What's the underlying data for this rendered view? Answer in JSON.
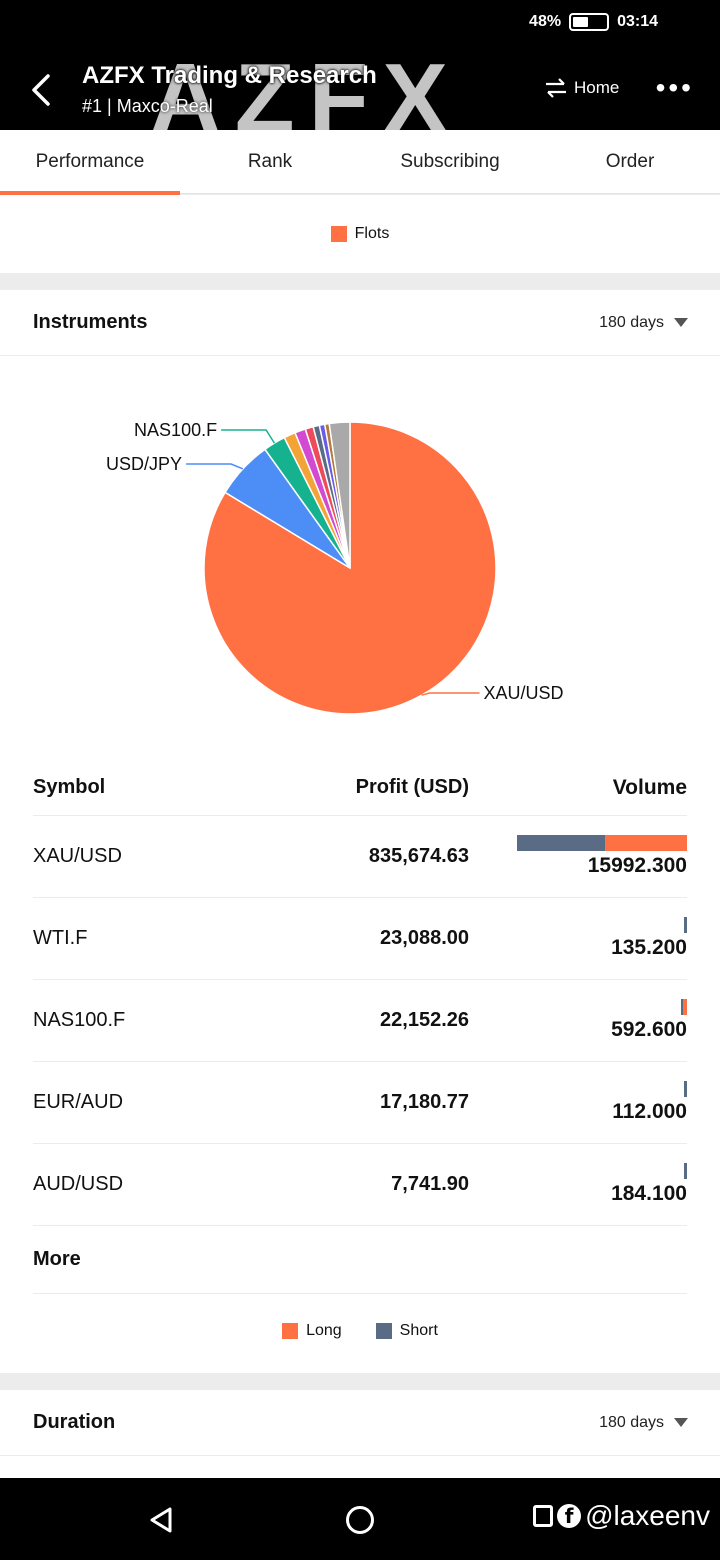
{
  "status_bar": {
    "battery_percent_label": "48%",
    "battery_level": 0.48,
    "time": "03:14"
  },
  "header": {
    "watermark": "AZFX",
    "title": "AZFX Trading & Research",
    "subtitle": "#1 | Maxco-Real",
    "home_label": "Home"
  },
  "tabs": [
    {
      "label": "Performance",
      "active": true
    },
    {
      "label": "Rank",
      "active": false
    },
    {
      "label": "Subscribing",
      "active": false
    },
    {
      "label": "Order",
      "active": false
    }
  ],
  "top_legend": {
    "label": "Flots",
    "color": "#ff7043"
  },
  "instruments": {
    "title": "Instruments",
    "period": "180 days",
    "chart_data": {
      "type": "pie",
      "slices": [
        {
          "name": "XAU/USD",
          "value": 84.5,
          "color": "#ff7043",
          "labeled": true
        },
        {
          "name": "USD/JPY",
          "value": 6.5,
          "color": "#4c8ef5",
          "labeled": true
        },
        {
          "name": "NAS100.F",
          "value": 2.5,
          "color": "#16b28f",
          "labeled": true
        },
        {
          "name": "",
          "value": 1.3,
          "color": "#f4a336",
          "labeled": false
        },
        {
          "name": "",
          "value": 1.2,
          "color": "#d24ad1",
          "labeled": false
        },
        {
          "name": "",
          "value": 0.9,
          "color": "#ee4b5a",
          "labeled": false
        },
        {
          "name": "",
          "value": 0.7,
          "color": "#5a6b86",
          "labeled": false
        },
        {
          "name": "",
          "value": 0.6,
          "color": "#6b5be8",
          "labeled": false
        },
        {
          "name": "",
          "value": 0.5,
          "color": "#b47a3b",
          "labeled": false
        },
        {
          "name": "",
          "value": 2.3,
          "color": "#a9a9a9",
          "labeled": false
        }
      ]
    },
    "table": {
      "headers": {
        "symbol": "Symbol",
        "profit": "Profit (USD)",
        "volume": "Volume"
      },
      "rows": [
        {
          "symbol": "XAU/USD",
          "profit": "835,674.63",
          "volume": "15992.300",
          "short_fraction": 0.52,
          "bar_fraction": 1.0
        },
        {
          "symbol": "WTI.F",
          "profit": "23,088.00",
          "volume": "135.200",
          "short_fraction": 1.0,
          "bar_fraction": 0.008
        },
        {
          "symbol": "NAS100.F",
          "profit": "22,152.26",
          "volume": "592.600",
          "short_fraction": 0.4,
          "bar_fraction": 0.035
        },
        {
          "symbol": "EUR/AUD",
          "profit": "17,180.77",
          "volume": "112.000",
          "short_fraction": 1.0,
          "bar_fraction": 0.008
        },
        {
          "symbol": "AUD/USD",
          "profit": "7,741.90",
          "volume": "184.100",
          "short_fraction": 1.0,
          "bar_fraction": 0.011
        }
      ],
      "more_label": "More"
    },
    "legend": [
      {
        "label": "Long",
        "color": "#ff7043"
      },
      {
        "label": "Short",
        "color": "#5a6b86"
      }
    ]
  },
  "duration": {
    "title": "Duration",
    "period": "180 days"
  },
  "navbar": {
    "credit": "@laxeenv"
  }
}
